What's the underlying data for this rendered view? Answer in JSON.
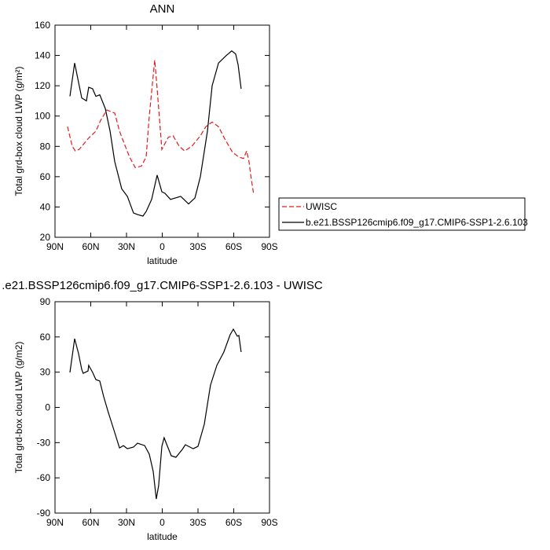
{
  "chart_data": [
    {
      "type": "line",
      "title": "ANN",
      "xlabel": "latitude",
      "ylabel": "Total grd-box cloud LWP (g/m²)",
      "xlim": [
        90,
        -90
      ],
      "ylim": [
        20,
        160
      ],
      "xticks": [
        {
          "value": 90,
          "label": "90N"
        },
        {
          "value": 60,
          "label": "60N"
        },
        {
          "value": 30,
          "label": "30N"
        },
        0,
        {
          "value": -30,
          "label": "30S"
        },
        {
          "value": -60,
          "label": "60S"
        },
        {
          "value": -90,
          "label": "90S"
        }
      ],
      "yticks": [
        20,
        40,
        60,
        80,
        100,
        120,
        140,
        160
      ],
      "legend": "right",
      "series": [
        {
          "name": "UWISC",
          "color": "#e41a1c",
          "dash": true,
          "x": [
            79.5,
            75.5,
            72.9,
            69.6,
            67.6,
            62.3,
            55.7,
            51.8,
            46.5,
            39.9,
            35.9,
            32,
            27.4,
            22.7,
            17.5,
            13.5,
            10.9,
            6.3,
            4.3,
            0.3,
            -5.1,
            -9.1,
            -14.3,
            -18.8,
            -24.7,
            -32,
            -36.6,
            -41.9,
            -47.2,
            -52.4,
            -59,
            -64.3,
            -68.2,
            -70.9,
            -72.8,
            -74.8,
            -76.8
          ],
          "values": [
            93,
            80,
            77,
            78,
            80,
            85,
            90,
            97,
            104,
            102,
            90,
            82,
            73,
            66,
            67,
            73,
            100,
            137,
            118,
            78,
            86,
            87,
            80,
            77,
            80,
            87,
            93,
            96,
            93,
            85,
            76,
            73,
            72,
            77,
            70,
            58,
            48
          ]
        },
        {
          "name": "b.e21.BSSP126cmip6.f09_g17.CMIP6-SSP1-2.6.103",
          "color": "#000000",
          "dash": false,
          "x": [
            77.5,
            73.5,
            67.6,
            63.6,
            61.7,
            58.4,
            55.7,
            52.4,
            47.8,
            43.8,
            39.9,
            34,
            29.3,
            24.1,
            20.8,
            16.2,
            13.5,
            8.9,
            4.3,
            0.3,
            -2.3,
            -6.9,
            -15.5,
            -22.1,
            -27.4,
            -32,
            -37.9,
            -41.9,
            -47.2,
            -53.8,
            -58.3,
            -61.6,
            -63.6,
            -66.2
          ],
          "values": [
            113,
            135,
            112,
            110,
            119,
            118,
            113,
            114,
            105,
            90,
            70,
            52,
            47,
            36,
            35,
            34,
            37,
            45,
            61,
            50,
            49,
            45,
            47,
            42,
            46,
            60,
            90,
            120,
            135,
            140,
            143,
            141,
            134,
            118
          ]
        }
      ]
    },
    {
      "type": "line",
      "title": ".e21.BSSP126cmip6.f09_g17.CMIP6-SSP1-2.6.103 - UWISC",
      "xlabel": "latitude",
      "ylabel": "Total grd-box cloud LWP (g/m2)",
      "xlim": [
        90,
        -90
      ],
      "ylim": [
        -90,
        90
      ],
      "xticks": [
        {
          "value": 90,
          "label": "90N"
        },
        {
          "value": 60,
          "label": "60N"
        },
        {
          "value": 30,
          "label": "30N"
        },
        0,
        {
          "value": -30,
          "label": "30S"
        },
        {
          "value": -60,
          "label": "60S"
        },
        {
          "value": -90,
          "label": "90S"
        }
      ],
      "yticks": [
        -90,
        -60,
        -30,
        0,
        30,
        60,
        90
      ],
      "series": [
        {
          "color": "#000000",
          "dash": false,
          "x": [
            77.5,
            73.5,
            70.2,
            67.6,
            66.3,
            62.3,
            61.7,
            58.4,
            55.7,
            52.4,
            49.1,
            45.2,
            40.6,
            35.9,
            32.6,
            29.3,
            24.1,
            20.8,
            14.8,
            10.9,
            7.6,
            5,
            3,
            0.3,
            -1.6,
            -3.6,
            -7.6,
            -11.5,
            -16.8,
            -19.4,
            -26,
            -30,
            -35.3,
            -40.5,
            -45.8,
            -51.7,
            -57,
            -59.7,
            -63,
            -64.3,
            -66.2
          ],
          "values": [
            29.8,
            58.5,
            45.8,
            32.4,
            29,
            31,
            35.8,
            29.8,
            23.7,
            22.4,
            9,
            -4.4,
            -19.1,
            -34.5,
            -32.5,
            -35.2,
            -33.8,
            -30.5,
            -32.5,
            -39.9,
            -54.6,
            -78,
            -66.6,
            -33.2,
            -25.8,
            -31.2,
            -41.2,
            -42.5,
            -35.8,
            -31.8,
            -35.2,
            -33.2,
            -14.4,
            19,
            35.8,
            47.2,
            61.9,
            66.6,
            60.6,
            61.2,
            47.2
          ]
        }
      ]
    }
  ]
}
